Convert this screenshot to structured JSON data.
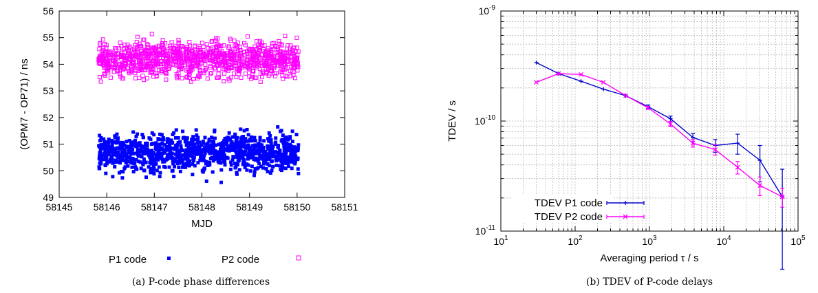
{
  "chart_data": [
    {
      "type": "scatter",
      "caption": "(a) P-code phase differences",
      "xlabel": "MJD",
      "ylabel": "(OPM7 - OP71) / ns",
      "xlim": [
        58145,
        58151
      ],
      "ylim": [
        49,
        56
      ],
      "x_ticks": [
        "58145",
        "58146",
        "58147",
        "58148",
        "58149",
        "58150",
        "58151"
      ],
      "y_ticks": [
        "49",
        "50",
        "51",
        "52",
        "53",
        "54",
        "55",
        "56"
      ],
      "grid": false,
      "legend": "below",
      "series": [
        {
          "name": "P1 code",
          "color": "#0000ff",
          "marker": "filled-square",
          "x_range": [
            58145.83,
            58150.03
          ],
          "center": 50.7,
          "spread": [
            49.4,
            52.05
          ]
        },
        {
          "name": "P2 code",
          "color": "#ff00ff",
          "marker": "open-square",
          "x_range": [
            58145.83,
            58150.03
          ],
          "center": 54.2,
          "spread": [
            52.95,
            55.4
          ]
        }
      ]
    },
    {
      "type": "line",
      "caption": "(b) TDEV of P-code delays",
      "xlabel": "Averaging period τ / s",
      "ylabel": "TDEV / s",
      "xscale": "log",
      "yscale": "log",
      "xlim": [
        10,
        100000
      ],
      "ylim": [
        1e-11,
        1e-09
      ],
      "x_ticks": [
        {
          "base": "10",
          "exp": "1"
        },
        {
          "base": "10",
          "exp": "2"
        },
        {
          "base": "10",
          "exp": "3"
        },
        {
          "base": "10",
          "exp": "4"
        },
        {
          "base": "10",
          "exp": "5"
        }
      ],
      "y_ticks": [
        {
          "base": "10",
          "exp": "-11"
        },
        {
          "base": "10",
          "exp": "-10"
        },
        {
          "base": "10",
          "exp": "-9"
        }
      ],
      "grid": true,
      "legend": "bottom-left",
      "series": [
        {
          "name": "TDEV P1 code",
          "color": "#0000cc",
          "marker": "plus",
          "x": [
            30,
            60,
            120,
            240,
            480,
            960,
            1920,
            3840,
            7680,
            15360,
            30720,
            61440
          ],
          "y": [
            3.4e-10,
            2.7e-10,
            2.3e-10,
            1.95e-10,
            1.7e-10,
            1.35e-10,
            1.05e-10,
            7.1e-11,
            6e-11,
            6.3e-11,
            4.4e-11,
            2.05e-11
          ],
          "err": [
            0,
            0,
            0,
            0,
            0,
            5e-12,
            6e-12,
            6e-12,
            8e-12,
            1.3e-11,
            1.6e-11,
            1.6e-11
          ]
        },
        {
          "name": "TDEV P2 code",
          "color": "#ff00ff",
          "marker": "cross",
          "x": [
            30,
            60,
            120,
            240,
            480,
            960,
            1920,
            3840,
            7680,
            15360,
            30720,
            61440
          ],
          "y": [
            2.25e-10,
            2.7e-10,
            2.65e-10,
            2.25e-10,
            1.7e-10,
            1.32e-10,
            9.4e-11,
            6.3e-11,
            5.5e-11,
            3.8e-11,
            2.6e-11,
            2.05e-11
          ],
          "err": [
            0,
            0,
            0,
            0,
            0,
            4e-12,
            5e-12,
            5e-12,
            6e-12,
            5e-12,
            5e-12,
            4e-12
          ]
        }
      ]
    }
  ]
}
